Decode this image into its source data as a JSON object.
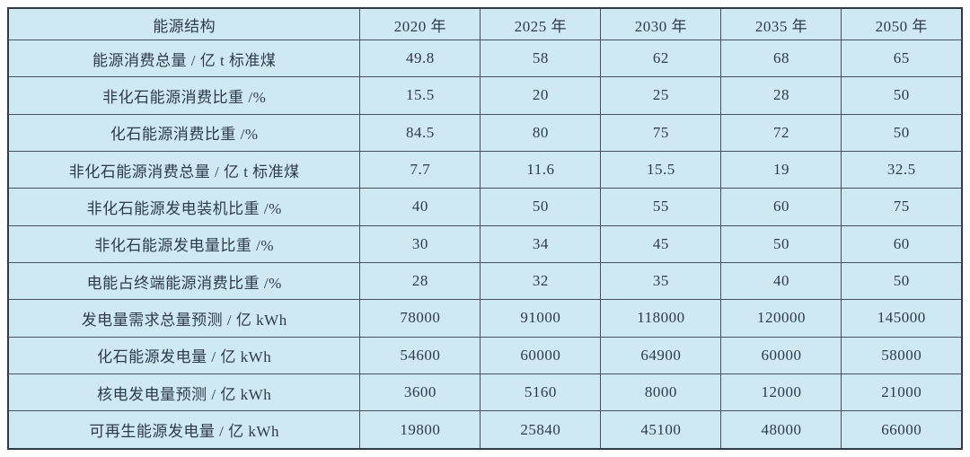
{
  "colors": {
    "cell_background": "#cfe9f3",
    "grid_line": "#44505c",
    "text": "#2d3b4c",
    "page_background": "#fdfdfd"
  },
  "table": {
    "header": [
      "能源结构",
      "2020 年",
      "2025 年",
      "2030 年",
      "2035 年",
      "2050 年"
    ],
    "rows": [
      {
        "label": "能源消费总量 / 亿 t 标准煤",
        "values": [
          "49.8",
          "58",
          "62",
          "68",
          "65"
        ]
      },
      {
        "label": "非化石能源消费比重 /%",
        "values": [
          "15.5",
          "20",
          "25",
          "28",
          "50"
        ]
      },
      {
        "label": "化石能源消费比重 /%",
        "values": [
          "84.5",
          "80",
          "75",
          "72",
          "50"
        ]
      },
      {
        "label": "非化石能源消费总量 / 亿 t 标准煤",
        "values": [
          "7.7",
          "11.6",
          "15.5",
          "19",
          "32.5"
        ]
      },
      {
        "label": "非化石能源发电装机比重 /%",
        "values": [
          "40",
          "50",
          "55",
          "60",
          "75"
        ]
      },
      {
        "label": "非化石能源发电量比重 /%",
        "values": [
          "30",
          "34",
          "45",
          "50",
          "60"
        ]
      },
      {
        "label": "电能占终端能源消费比重 /%",
        "values": [
          "28",
          "32",
          "35",
          "40",
          "50"
        ]
      },
      {
        "label": "发电量需求总量预测 / 亿 kWh",
        "values": [
          "78000",
          "91000",
          "118000",
          "120000",
          "145000"
        ]
      },
      {
        "label": "化石能源发电量 / 亿 kWh",
        "values": [
          "54600",
          "60000",
          "64900",
          "60000",
          "58000"
        ]
      },
      {
        "label": "核电发电量预测 / 亿 kWh",
        "values": [
          "3600",
          "5160",
          "8000",
          "12000",
          "21000"
        ]
      },
      {
        "label": "可再生能源发电量 / 亿 kWh",
        "values": [
          "19800",
          "25840",
          "45100",
          "48000",
          "66000"
        ]
      }
    ]
  },
  "chart_data": {
    "type": "table",
    "title": "能源结构",
    "categories": [
      "2020 年",
      "2025 年",
      "2030 年",
      "2035 年",
      "2050 年"
    ],
    "series": [
      {
        "name": "能源消费总量 / 亿 t 标准煤",
        "values": [
          49.8,
          58,
          62,
          68,
          65
        ]
      },
      {
        "name": "非化石能源消费比重 /%",
        "values": [
          15.5,
          20,
          25,
          28,
          50
        ]
      },
      {
        "name": "化石能源消费比重 /%",
        "values": [
          84.5,
          80,
          75,
          72,
          50
        ]
      },
      {
        "name": "非化石能源消费总量 / 亿 t 标准煤",
        "values": [
          7.7,
          11.6,
          15.5,
          19,
          32.5
        ]
      },
      {
        "name": "非化石能源发电装机比重 /%",
        "values": [
          40,
          50,
          55,
          60,
          75
        ]
      },
      {
        "name": "非化石能源发电量比重 /%",
        "values": [
          30,
          34,
          45,
          50,
          60
        ]
      },
      {
        "name": "电能占终端能源消费比重 /%",
        "values": [
          28,
          32,
          35,
          40,
          50
        ]
      },
      {
        "name": "发电量需求总量预测 / 亿 kWh",
        "values": [
          78000,
          91000,
          118000,
          120000,
          145000
        ]
      },
      {
        "name": "化石能源发电量 / 亿 kWh",
        "values": [
          54600,
          60000,
          64900,
          60000,
          58000
        ]
      },
      {
        "name": "核电发电量预测 / 亿 kWh",
        "values": [
          3600,
          5160,
          8000,
          12000,
          21000
        ]
      },
      {
        "name": "可再生能源发电量 / 亿 kWh",
        "values": [
          19800,
          25840,
          45100,
          48000,
          66000
        ]
      }
    ]
  }
}
